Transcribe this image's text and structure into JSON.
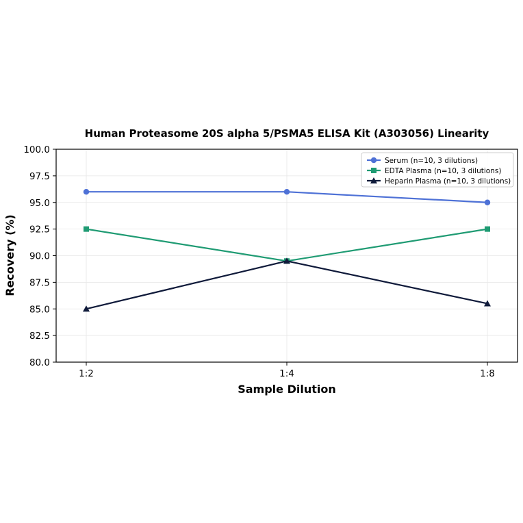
{
  "chart_data": {
    "type": "line",
    "title": "Human Proteasome 20S alpha 5/PSMA5 ELISA Kit (A303056) Linearity",
    "xlabel": "Sample Dilution",
    "ylabel": "Recovery (%)",
    "categories": [
      "1:2",
      "1:4",
      "1:8"
    ],
    "ylim": [
      80.0,
      100.0
    ],
    "yticks": [
      "80.0",
      "82.5",
      "85.0",
      "87.5",
      "90.0",
      "92.5",
      "95.0",
      "97.5",
      "100.0"
    ],
    "grid": true,
    "legend_position": "top-right",
    "series": [
      {
        "name": "Serum (n=10, 3 dilutions)",
        "values": [
          96.0,
          96.0,
          95.0
        ],
        "color": "#4e71d6",
        "marker": "circle"
      },
      {
        "name": "EDTA Plasma (n=10, 3 dilutions)",
        "values": [
          92.5,
          89.5,
          92.5
        ],
        "color": "#1f9b73",
        "marker": "square"
      },
      {
        "name": "Heparin Plasma (n=10, 3 dilutions)",
        "values": [
          85.0,
          89.5,
          85.5
        ],
        "color": "#0f1a3a",
        "marker": "triangle"
      }
    ]
  }
}
